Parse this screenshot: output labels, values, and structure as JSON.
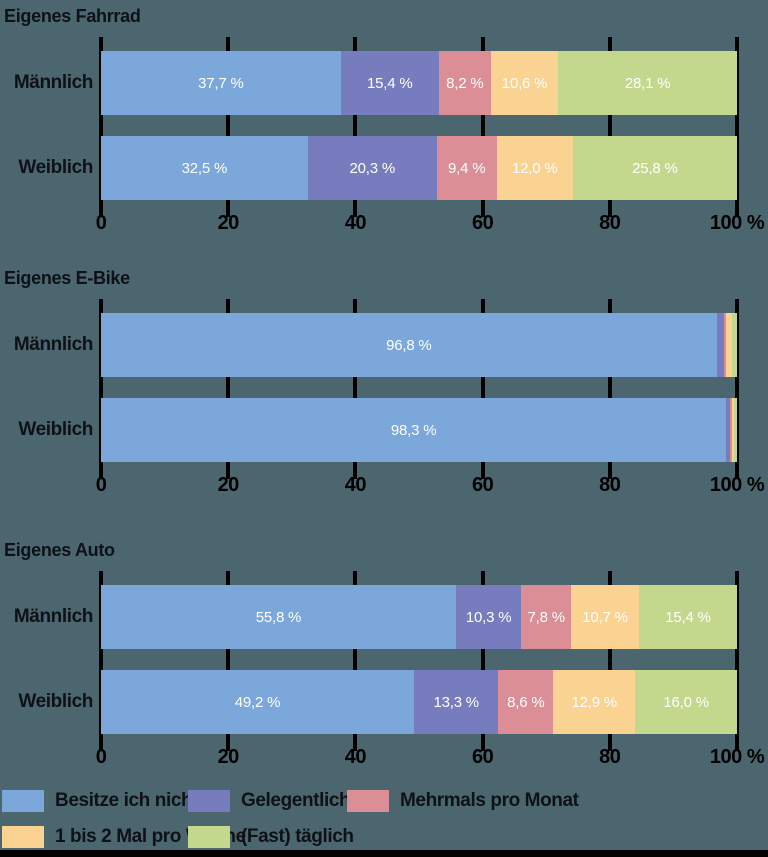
{
  "page": {
    "background_color": "#4c6670",
    "text_color": "#0e1116",
    "axis_color": "#000000",
    "bar_label_color": "#ffffff",
    "bottom_bar_color": "#000000"
  },
  "palette": {
    "blue": "#7ba7da",
    "purple": "#777cbe",
    "pink": "#dc8e97",
    "orange": "#fad291",
    "green": "#c3d88c"
  },
  "axis": {
    "range": [
      0,
      100
    ],
    "ticks": [
      {
        "pos": 0,
        "label": "0"
      },
      {
        "pos": 20,
        "label": "20"
      },
      {
        "pos": 40,
        "label": "40"
      },
      {
        "pos": 60,
        "label": "60"
      },
      {
        "pos": 80,
        "label": "80"
      },
      {
        "pos": 100,
        "label": "100 %"
      }
    ]
  },
  "legend": {
    "rows": [
      [
        {
          "color_key": "blue",
          "label": "Besitze ich nicht"
        },
        {
          "color_key": "purple",
          "label": "Gelegentlich"
        },
        {
          "color_key": "pink",
          "label": "Mehrmals pro Monat"
        }
      ],
      [
        {
          "color_key": "orange",
          "label": "1 bis 2 Mal pro Woche"
        },
        {
          "color_key": "green",
          "label": "(Fast) täglich"
        }
      ]
    ]
  },
  "chart_data": [
    {
      "type": "bar",
      "subtype": "stacked-horizontal",
      "title": "Eigenes Fahrrad",
      "categories": [
        "Männlich",
        "Weiblich"
      ],
      "xlim": [
        0,
        100
      ],
      "x_tick_labels": [
        "0",
        "20",
        "40",
        "60",
        "80",
        "100 %"
      ],
      "series": [
        {
          "name": "Besitze ich nicht",
          "color_key": "blue",
          "values": [
            37.7,
            32.5
          ],
          "labels": [
            "37,7 %",
            "32,5 %"
          ]
        },
        {
          "name": "Gelegentlich",
          "color_key": "purple",
          "values": [
            15.4,
            20.3
          ],
          "labels": [
            "15,4 %",
            "20,3 %"
          ]
        },
        {
          "name": "Mehrmals pro Monat",
          "color_key": "pink",
          "values": [
            8.2,
            9.4
          ],
          "labels": [
            "8,2 %",
            "9,4 %"
          ]
        },
        {
          "name": "1 bis 2 Mal pro Woche",
          "color_key": "orange",
          "values": [
            10.6,
            12.0
          ],
          "labels": [
            "10,6 %",
            "12,0 %"
          ]
        },
        {
          "name": "(Fast) täglich",
          "color_key": "green",
          "values": [
            28.1,
            25.8
          ],
          "labels": [
            "28,1 %",
            "25,8 %"
          ]
        }
      ]
    },
    {
      "type": "bar",
      "subtype": "stacked-horizontal",
      "title": "Eigenes E-Bike",
      "categories": [
        "Männlich",
        "Weiblich"
      ],
      "xlim": [
        0,
        100
      ],
      "x_tick_labels": [
        "0",
        "20",
        "40",
        "60",
        "80",
        "100 %"
      ],
      "series": [
        {
          "name": "Besitze ich nicht",
          "color_key": "blue",
          "values": [
            96.8,
            98.3
          ],
          "labels": [
            "96,8 %",
            "98,3 %"
          ]
        },
        {
          "name": "Gelegentlich",
          "color_key": "purple",
          "values": [
            1.2,
            0.6
          ],
          "labels": [
            "",
            ""
          ]
        },
        {
          "name": "Mehrmals pro Monat",
          "color_key": "pink",
          "values": [
            0.2,
            0.3
          ],
          "labels": [
            "",
            ""
          ]
        },
        {
          "name": "1 bis 2 Mal pro Woche",
          "color_key": "orange",
          "values": [
            1.0,
            0.4
          ],
          "labels": [
            "",
            ""
          ]
        },
        {
          "name": "(Fast) täglich",
          "color_key": "green",
          "values": [
            0.8,
            0.4
          ],
          "labels": [
            "",
            ""
          ]
        }
      ]
    },
    {
      "type": "bar",
      "subtype": "stacked-horizontal",
      "title": "Eigenes Auto",
      "categories": [
        "Männlich",
        "Weiblich"
      ],
      "xlim": [
        0,
        100
      ],
      "x_tick_labels": [
        "0",
        "20",
        "40",
        "60",
        "80",
        "100 %"
      ],
      "series": [
        {
          "name": "Besitze ich nicht",
          "color_key": "blue",
          "values": [
            55.8,
            49.2
          ],
          "labels": [
            "55,8 %",
            "49,2 %"
          ]
        },
        {
          "name": "Gelegentlich",
          "color_key": "purple",
          "values": [
            10.3,
            13.3
          ],
          "labels": [
            "10,3 %",
            "13,3 %"
          ]
        },
        {
          "name": "Mehrmals pro Monat",
          "color_key": "pink",
          "values": [
            7.8,
            8.6
          ],
          "labels": [
            "7,8 %",
            "8,6 %"
          ]
        },
        {
          "name": "1 bis 2 Mal pro Woche",
          "color_key": "orange",
          "values": [
            10.7,
            12.9
          ],
          "labels": [
            "10,7 %",
            "12,9 %"
          ]
        },
        {
          "name": "(Fast) täglich",
          "color_key": "green",
          "values": [
            15.4,
            16.0
          ],
          "labels": [
            "15,4 %",
            "16,0 %"
          ]
        }
      ]
    }
  ]
}
